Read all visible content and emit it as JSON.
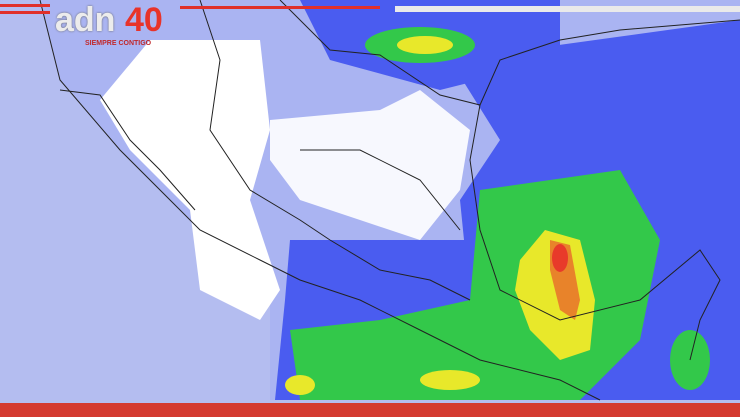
{
  "broadcast": {
    "logo_text": "adn",
    "logo_number": "40",
    "logo_tagline": "SIEMPRE CONTIGO"
  },
  "map": {
    "region": "Mexico precipitation forecast",
    "colors": {
      "ocean": "#b4bdf0",
      "land_dry": "#ffffff",
      "light_rain": "#aab4f2",
      "moderate_rain": "#4a5cf0",
      "heavy_rain": "#33c84a",
      "very_heavy": "#e8e82a",
      "extreme": "#e83a2a",
      "accent": "#e0302a"
    }
  }
}
